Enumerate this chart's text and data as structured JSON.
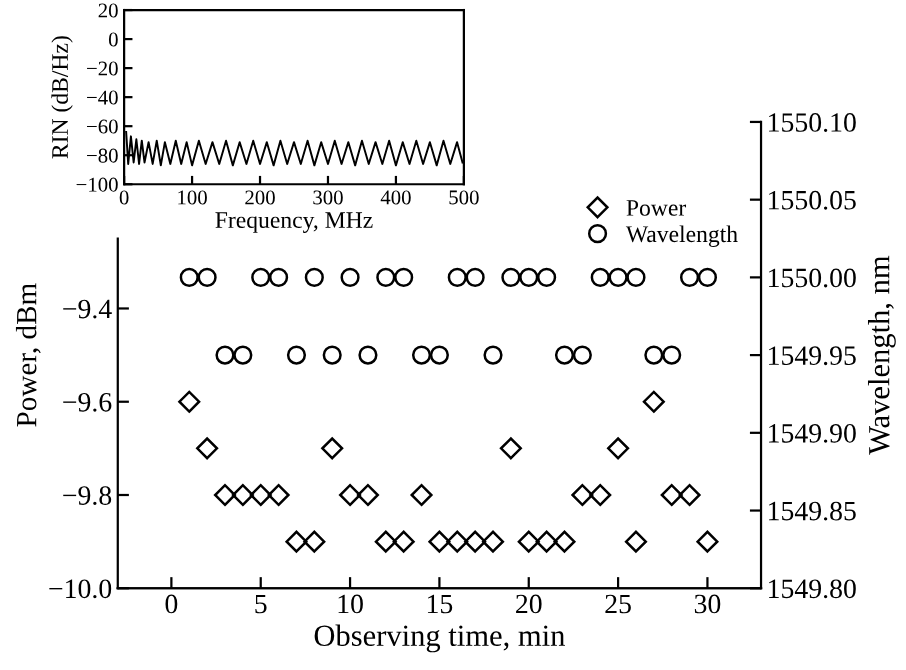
{
  "chart_data": [
    {
      "type": "line",
      "xlabel": "Frequency, MHz",
      "ylabel": "RIN (dB/Hz)",
      "xlim": [
        0,
        500
      ],
      "ylim": [
        -100,
        20
      ],
      "xticks": [
        0,
        100,
        200,
        300,
        400,
        500
      ],
      "yticks": [
        -100,
        -80,
        -60,
        -40,
        -20,
        0,
        20
      ],
      "grid": false,
      "legend": false,
      "marker": "none",
      "line_style": "solid",
      "series": [
        {
          "color": "#000000",
          "x": [
            3,
            6,
            10,
            14,
            18,
            22,
            26,
            30,
            36,
            42,
            48,
            54,
            60,
            68,
            76,
            84,
            92,
            100,
            110,
            120,
            130,
            140,
            150,
            160,
            170,
            180,
            190,
            200,
            210,
            220,
            230,
            240,
            250,
            260,
            270,
            280,
            290,
            300,
            310,
            320,
            330,
            340,
            350,
            360,
            370,
            380,
            390,
            400,
            410,
            420,
            430,
            440,
            450,
            460,
            470,
            480,
            490,
            498
          ],
          "values": [
            -64,
            -86,
            -67,
            -85,
            -69,
            -86,
            -70,
            -85,
            -71,
            -86,
            -70,
            -87,
            -71,
            -86,
            -70,
            -86,
            -71,
            -87,
            -70,
            -86,
            -71,
            -86,
            -70,
            -87,
            -71,
            -86,
            -70,
            -86,
            -71,
            -87,
            -70,
            -86,
            -71,
            -86,
            -70,
            -87,
            -71,
            -86,
            -70,
            -86,
            -71,
            -87,
            -70,
            -86,
            -71,
            -86,
            -70,
            -87,
            -71,
            -86,
            -70,
            -86,
            -71,
            -87,
            -70,
            -86,
            -71,
            -85
          ]
        }
      ]
    },
    {
      "type": "scatter",
      "xlabel": "Observing time, min",
      "ylabel": "Power, dBm",
      "y2label": "Wavelength, nm",
      "xlim": [
        -3,
        33
      ],
      "ylim": [
        -10.0,
        -9.0
      ],
      "y2lim": [
        1549.8,
        1550.1
      ],
      "xticks": [
        0,
        5,
        10,
        15,
        20,
        25,
        30
      ],
      "yticks": [
        {
          "value": -10.0,
          "label": "−10.0"
        },
        -9.8,
        -9.6,
        -9.4
      ],
      "y2ticks": [
        {
          "value": 1549.8,
          "label": "1549.80"
        },
        1549.85,
        {
          "value": 1549.9,
          "label": "1549.90"
        },
        1549.95,
        {
          "value": 1550.0,
          "label": "1550.00"
        },
        1550.05,
        {
          "value": 1550.1,
          "label": "1550.10"
        }
      ],
      "grid": false,
      "legend": "top right",
      "x": [
        1,
        2,
        3,
        4,
        5,
        6,
        7,
        8,
        9,
        10,
        11,
        12,
        13,
        14,
        15,
        16,
        17,
        18,
        19,
        20,
        21,
        22,
        23,
        24,
        25,
        26,
        27,
        28,
        29,
        30
      ],
      "series": [
        {
          "name": "Power",
          "color": "#000000",
          "marker": "diamond",
          "values": [
            -9.6,
            -9.7,
            -9.8,
            -9.8,
            -9.8,
            -9.8,
            -9.9,
            -9.9,
            -9.7,
            -9.8,
            -9.8,
            -9.9,
            -9.9,
            -9.8,
            -9.9,
            -9.9,
            -9.9,
            -9.9,
            -9.7,
            -9.9,
            -9.9,
            -9.9,
            -9.8,
            -9.8,
            -9.7,
            -9.9,
            -9.6,
            -9.8,
            -9.8,
            -9.9
          ]
        },
        {
          "name": "Wavelength",
          "color": "#000000",
          "marker": "circle",
          "axis": "y2",
          "values": [
            1550.0,
            1550.0,
            1549.95,
            1549.95,
            1550.0,
            1550.0,
            1549.95,
            1550.0,
            1549.95,
            1550.0,
            1549.95,
            1550.0,
            1550.0,
            1549.95,
            1549.95,
            1550.0,
            1550.0,
            1549.95,
            1550.0,
            1550.0,
            1550.0,
            1549.95,
            1549.95,
            1550.0,
            1550.0,
            1550.0,
            1549.95,
            1549.95,
            1550.0,
            1550.0
          ]
        }
      ]
    }
  ]
}
